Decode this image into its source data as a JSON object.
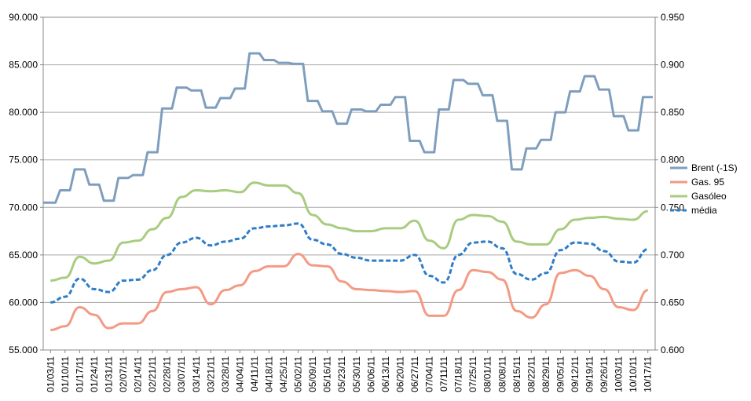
{
  "chart_data": {
    "type": "line",
    "legend_position": "right",
    "grid": true,
    "x_tick_labels": [
      "01/03/11",
      "01/10/11",
      "01/17/11",
      "01/24/11",
      "01/31/11",
      "02/07/11",
      "02/14/11",
      "02/21/11",
      "02/28/11",
      "03/07/11",
      "03/14/11",
      "03/21/11",
      "03/28/11",
      "04/04/11",
      "04/11/11",
      "04/18/11",
      "04/25/11",
      "05/02/11",
      "05/09/11",
      "05/16/11",
      "05/23/11",
      "05/30/11",
      "06/06/11",
      "06/13/11",
      "06/20/11",
      "06/27/11",
      "07/04/11",
      "07/11/11",
      "07/18/11",
      "07/25/11",
      "08/01/11",
      "08/08/11",
      "08/15/11",
      "08/22/11",
      "08/29/11",
      "09/05/11",
      "09/12/11",
      "09/19/11",
      "09/26/11",
      "10/03/11",
      "10/10/11",
      "10/17/11"
    ],
    "y_left": {
      "min": 55000,
      "max": 90000,
      "step": 5000,
      "tick_labels": [
        "55.000",
        "60.000",
        "65.000",
        "70.000",
        "75.000",
        "80.000",
        "85.000",
        "90.000"
      ]
    },
    "y_right": {
      "min": 0.6,
      "max": 0.95,
      "step": 0.05,
      "tick_labels": [
        "0.600",
        "0.650",
        "0.700",
        "0.750",
        "0.800",
        "0.850",
        "0.900",
        "0.950"
      ]
    },
    "series": [
      {
        "name": "Brent (-1S)",
        "axis": "left",
        "color": "#7f9ebe",
        "dash": false,
        "x": [
          "01/03/11",
          "01/10/11",
          "01/17/11",
          "01/24/11",
          "01/31/11",
          "02/07/11",
          "02/14/11",
          "02/21/11",
          "02/28/11",
          "03/07/11",
          "03/14/11",
          "03/21/11",
          "03/28/11",
          "04/04/11",
          "04/11/11",
          "04/18/11",
          "04/25/11",
          "05/02/11",
          "05/09/11",
          "05/16/11",
          "05/23/11",
          "05/30/11",
          "06/06/11",
          "06/13/11",
          "06/20/11",
          "06/27/11",
          "07/04/11",
          "07/11/11",
          "07/18/11",
          "07/25/11",
          "08/01/11",
          "08/08/11",
          "08/15/11",
          "08/22/11",
          "08/29/11",
          "09/05/11",
          "09/12/11",
          "09/19/11",
          "09/26/11",
          "10/03/11",
          "10/10/11",
          "10/17/11"
        ],
        "values": [
          70500,
          71800,
          74000,
          72400,
          70700,
          73100,
          73400,
          75800,
          80400,
          82600,
          82300,
          80500,
          81500,
          82500,
          86200,
          85500,
          85200,
          85100,
          81200,
          80100,
          78800,
          80300,
          80100,
          80800,
          81600,
          77000,
          75800,
          80300,
          83400,
          83000,
          81800,
          79100,
          74000,
          76200,
          77100,
          80000,
          82200,
          83800,
          82400,
          79600,
          78100,
          81600
        ]
      },
      {
        "name": "Gas. 95",
        "axis": "right",
        "color": "#f39a84",
        "dash": false,
        "x": [
          "01/03/11",
          "01/10/11",
          "01/17/11",
          "01/24/11",
          "01/31/11",
          "02/07/11",
          "02/14/11",
          "02/21/11",
          "02/28/11",
          "03/07/11",
          "03/14/11",
          "03/21/11",
          "03/28/11",
          "04/04/11",
          "04/11/11",
          "04/18/11",
          "04/25/11",
          "05/02/11",
          "05/09/11",
          "05/16/11",
          "05/23/11",
          "05/30/11",
          "06/06/11",
          "06/13/11",
          "06/20/11",
          "06/27/11",
          "07/04/11",
          "07/11/11",
          "07/18/11",
          "07/25/11",
          "08/01/11",
          "08/08/11",
          "08/15/11",
          "08/22/11",
          "08/29/11",
          "09/05/11",
          "09/12/11",
          "09/19/11",
          "09/26/11",
          "10/03/11",
          "10/10/11",
          "10/17/11"
        ],
        "values": [
          0.621,
          0.625,
          0.645,
          0.637,
          0.623,
          0.628,
          0.628,
          0.641,
          0.661,
          0.664,
          0.666,
          0.648,
          0.663,
          0.668,
          0.683,
          0.688,
          0.688,
          0.701,
          0.689,
          0.688,
          0.672,
          0.664,
          0.663,
          0.662,
          0.661,
          0.662,
          0.636,
          0.636,
          0.663,
          0.684,
          0.682,
          0.674,
          0.641,
          0.634,
          0.648,
          0.681,
          0.684,
          0.678,
          0.664,
          0.645,
          0.642,
          0.663
        ]
      },
      {
        "name": "Gasóleo",
        "axis": "right",
        "color": "#a8cc80",
        "dash": false,
        "x": [
          "01/03/11",
          "01/10/11",
          "01/17/11",
          "01/24/11",
          "01/31/11",
          "02/07/11",
          "02/14/11",
          "02/21/11",
          "02/28/11",
          "03/07/11",
          "03/14/11",
          "03/21/11",
          "03/28/11",
          "04/04/11",
          "04/11/11",
          "04/18/11",
          "04/25/11",
          "05/02/11",
          "05/09/11",
          "05/16/11",
          "05/23/11",
          "05/30/11",
          "06/06/11",
          "06/13/11",
          "06/20/11",
          "06/27/11",
          "07/04/11",
          "07/11/11",
          "07/18/11",
          "07/25/11",
          "08/01/11",
          "08/08/11",
          "08/15/11",
          "08/22/11",
          "08/29/11",
          "09/05/11",
          "09/12/11",
          "09/19/11",
          "09/26/11",
          "10/03/11",
          "10/10/11",
          "10/17/11"
        ],
        "values": [
          0.673,
          0.676,
          0.698,
          0.691,
          0.694,
          0.713,
          0.715,
          0.727,
          0.739,
          0.761,
          0.768,
          0.767,
          0.768,
          0.766,
          0.776,
          0.773,
          0.773,
          0.765,
          0.742,
          0.732,
          0.728,
          0.725,
          0.725,
          0.728,
          0.728,
          0.736,
          0.715,
          0.707,
          0.737,
          0.742,
          0.741,
          0.735,
          0.714,
          0.711,
          0.711,
          0.727,
          0.737,
          0.739,
          0.74,
          0.738,
          0.737,
          0.746
        ]
      },
      {
        "name": "média",
        "axis": "right",
        "color": "#2e7dc6",
        "dash": true,
        "x": [
          "01/03/11",
          "01/10/11",
          "01/17/11",
          "01/24/11",
          "01/31/11",
          "02/07/11",
          "02/14/11",
          "02/21/11",
          "02/28/11",
          "03/07/11",
          "03/14/11",
          "03/21/11",
          "03/28/11",
          "04/04/11",
          "04/11/11",
          "04/18/11",
          "04/25/11",
          "05/02/11",
          "05/09/11",
          "05/16/11",
          "05/23/11",
          "05/30/11",
          "06/06/11",
          "06/13/11",
          "06/20/11",
          "06/27/11",
          "07/04/11",
          "07/11/11",
          "07/18/11",
          "07/25/11",
          "08/01/11",
          "08/08/11",
          "08/15/11",
          "08/22/11",
          "08/29/11",
          "09/05/11",
          "09/12/11",
          "09/19/11",
          "09/26/11",
          "10/03/11",
          "10/10/11",
          "10/17/11"
        ],
        "values": [
          0.65,
          0.656,
          0.675,
          0.664,
          0.661,
          0.673,
          0.674,
          0.684,
          0.7,
          0.713,
          0.718,
          0.71,
          0.714,
          0.717,
          0.728,
          0.73,
          0.731,
          0.733,
          0.716,
          0.711,
          0.701,
          0.697,
          0.694,
          0.694,
          0.694,
          0.7,
          0.678,
          0.671,
          0.7,
          0.713,
          0.714,
          0.707,
          0.68,
          0.674,
          0.681,
          0.705,
          0.713,
          0.712,
          0.704,
          0.693,
          0.692,
          0.706
        ]
      }
    ]
  }
}
